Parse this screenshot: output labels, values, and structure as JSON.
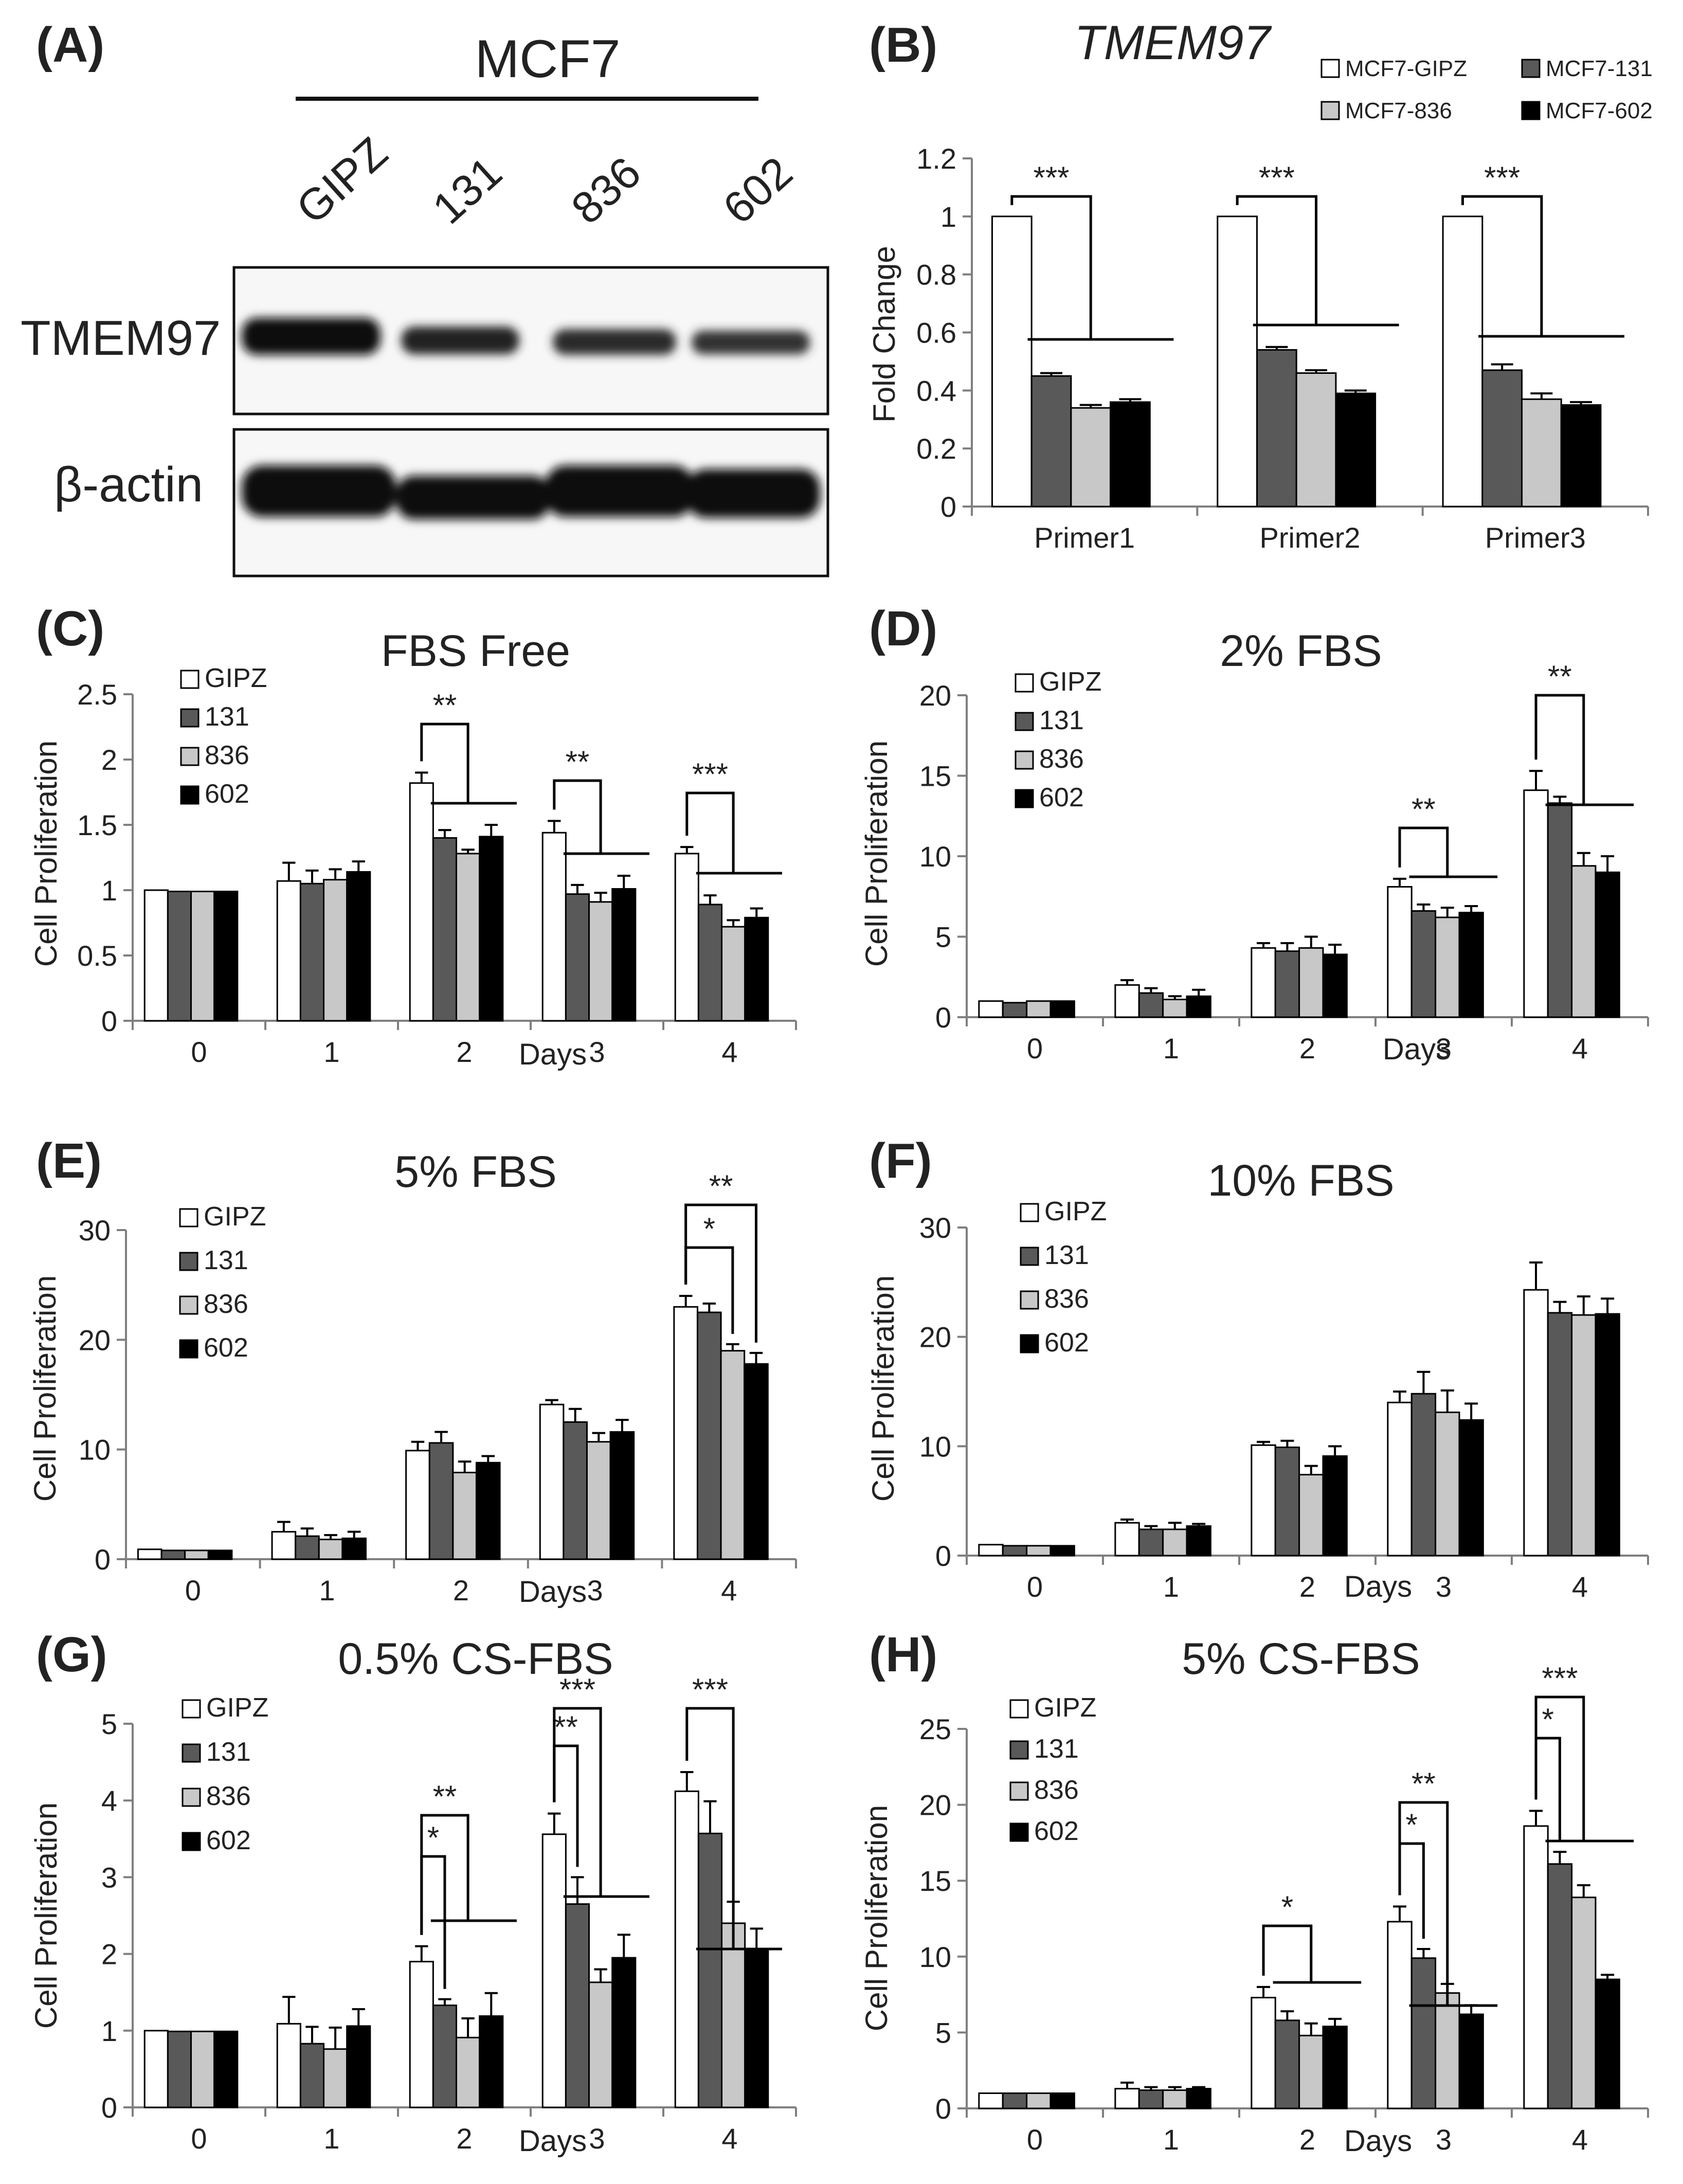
{
  "colors": {
    "gipz": "#ffffff",
    "c131": "#595959",
    "c836": "#c8c8c8",
    "c602": "#000000",
    "axis": "#7f7f7f",
    "ink": "#222222"
  },
  "panel_a": {
    "label": "(A)",
    "cell_line": "MCF7",
    "lanes": [
      "GIPZ",
      "131",
      "836",
      "602"
    ],
    "rows": [
      "TMEM97",
      "β-actin"
    ]
  },
  "chart_data": [
    {
      "id": "B",
      "panel_label": "(B)",
      "type": "bar",
      "title": "TMEM97",
      "categories": [
        "Primer1",
        "Primer2",
        "Primer3"
      ],
      "series": [
        {
          "name": "MCF7-GIPZ",
          "values": [
            1.0,
            1.0,
            1.0
          ],
          "err": [
            0,
            0,
            0
          ]
        },
        {
          "name": "MCF7-131",
          "values": [
            0.45,
            0.54,
            0.47
          ],
          "err": [
            0.01,
            0.01,
            0.02
          ]
        },
        {
          "name": "MCF7-836",
          "values": [
            0.34,
            0.46,
            0.37
          ],
          "err": [
            0.01,
            0.01,
            0.02
          ]
        },
        {
          "name": "MCF7-602",
          "values": [
            0.36,
            0.39,
            0.35
          ],
          "err": [
            0.01,
            0.01,
            0.01
          ]
        }
      ],
      "ylabel": "Fold Change",
      "xlabel": "",
      "ylim": [
        0,
        1.2
      ],
      "yticks": [
        "0",
        "0.2",
        "0.4",
        "0.6",
        "0.8",
        "1",
        "1.2"
      ],
      "annotations": [
        {
          "cat": 0,
          "text": "***"
        },
        {
          "cat": 1,
          "text": "***"
        },
        {
          "cat": 2,
          "text": "***"
        }
      ]
    },
    {
      "id": "C",
      "panel_label": "(C)",
      "type": "bar",
      "title": "FBS Free",
      "categories": [
        "0",
        "1",
        "2",
        "3",
        "4"
      ],
      "series": [
        {
          "name": "GIPZ",
          "values": [
            1.0,
            1.07,
            1.82,
            1.44,
            1.28
          ],
          "err": [
            0,
            0.14,
            0.08,
            0.09,
            0.05
          ]
        },
        {
          "name": "131",
          "values": [
            0.99,
            1.05,
            1.4,
            0.97,
            0.89
          ],
          "err": [
            0,
            0.1,
            0.06,
            0.07,
            0.07
          ]
        },
        {
          "name": "836",
          "values": [
            0.99,
            1.08,
            1.28,
            0.91,
            0.72
          ],
          "err": [
            0,
            0.08,
            0.03,
            0.07,
            0.05
          ]
        },
        {
          "name": "602",
          "values": [
            0.99,
            1.14,
            1.41,
            1.01,
            0.79
          ],
          "err": [
            0,
            0.08,
            0.09,
            0.1,
            0.07
          ]
        }
      ],
      "ylabel": "Cell Proliferation",
      "xlabel": "Days",
      "ylim": [
        0,
        2.5
      ],
      "yticks": [
        "0",
        "0.5",
        "1",
        "1.5",
        "2",
        "2.5"
      ],
      "annotations": [
        {
          "cat": 2,
          "text": "**"
        },
        {
          "cat": 3,
          "text": "**"
        },
        {
          "cat": 4,
          "text": "***"
        }
      ]
    },
    {
      "id": "D",
      "panel_label": "(D)",
      "type": "bar",
      "title": "2% FBS",
      "categories": [
        "0",
        "1",
        "2",
        "3",
        "4"
      ],
      "series": [
        {
          "name": "GIPZ",
          "values": [
            1.0,
            2.0,
            4.3,
            8.1,
            14.1
          ],
          "err": [
            0,
            0.3,
            0.3,
            0.5,
            1.2
          ]
        },
        {
          "name": "131",
          "values": [
            0.9,
            1.5,
            4.1,
            6.6,
            13.3
          ],
          "err": [
            0,
            0.3,
            0.5,
            0.4,
            0.4
          ]
        },
        {
          "name": "836",
          "values": [
            1.0,
            1.1,
            4.3,
            6.2,
            9.4
          ],
          "err": [
            0,
            0.2,
            0.7,
            0.6,
            0.8
          ]
        },
        {
          "name": "602",
          "values": [
            1.0,
            1.3,
            3.9,
            6.5,
            9.0
          ],
          "err": [
            0,
            0.4,
            0.6,
            0.4,
            1.0
          ]
        }
      ],
      "ylabel": "Cell Proliferation",
      "xlabel": "Days",
      "ylim": [
        0,
        20
      ],
      "yticks": [
        "0",
        "5",
        "10",
        "15",
        "20"
      ],
      "annotations": [
        {
          "cat": 3,
          "text": "**"
        },
        {
          "cat": 4,
          "text": "**"
        }
      ]
    },
    {
      "id": "E",
      "panel_label": "(E)",
      "type": "bar",
      "title": "5% FBS",
      "categories": [
        "0",
        "1",
        "2",
        "3",
        "4"
      ],
      "series": [
        {
          "name": "GIPZ",
          "values": [
            0.9,
            2.5,
            9.9,
            14.1,
            23.0
          ],
          "err": [
            0,
            0.9,
            0.8,
            0.4,
            1.0
          ]
        },
        {
          "name": "131",
          "values": [
            0.8,
            2.1,
            10.6,
            12.5,
            22.5
          ],
          "err": [
            0,
            0.7,
            1.0,
            1.2,
            0.8
          ]
        },
        {
          "name": "836",
          "values": [
            0.8,
            1.8,
            7.9,
            10.7,
            19.0
          ],
          "err": [
            0,
            0.4,
            1.0,
            0.8,
            0.6
          ]
        },
        {
          "name": "602",
          "values": [
            0.8,
            1.9,
            8.8,
            11.6,
            17.8
          ],
          "err": [
            0,
            0.6,
            0.6,
            1.1,
            1.0
          ]
        }
      ],
      "ylabel": "Cell Proliferation",
      "xlabel": "Days",
      "ylim": [
        0,
        30
      ],
      "yticks": [
        "0",
        "10",
        "20",
        "30"
      ],
      "annotations": [
        {
          "cat": 4,
          "text": "*"
        },
        {
          "cat": 4,
          "text": "**"
        }
      ]
    },
    {
      "id": "F",
      "panel_label": "(F)",
      "type": "bar",
      "title": "10% FBS",
      "categories": [
        "0",
        "1",
        "2",
        "3",
        "4"
      ],
      "series": [
        {
          "name": "GIPZ",
          "values": [
            1.0,
            3.0,
            10.1,
            14.0,
            24.3
          ],
          "err": [
            0,
            0.3,
            0.3,
            1.0,
            2.5
          ]
        },
        {
          "name": "131",
          "values": [
            0.9,
            2.4,
            9.9,
            14.8,
            22.2
          ],
          "err": [
            0,
            0.3,
            0.6,
            2.0,
            1.0
          ]
        },
        {
          "name": "836",
          "values": [
            0.9,
            2.4,
            7.4,
            13.1,
            22.0
          ],
          "err": [
            0,
            0.6,
            0.8,
            2.0,
            1.7
          ]
        },
        {
          "name": "602",
          "values": [
            0.9,
            2.7,
            9.1,
            12.4,
            22.1
          ],
          "err": [
            0,
            0.2,
            0.9,
            1.5,
            1.4
          ]
        }
      ],
      "ylabel": "Cell Proliferation",
      "xlabel": "Days",
      "ylim": [
        0,
        30
      ],
      "yticks": [
        "0",
        "10",
        "20",
        "30"
      ],
      "annotations": []
    },
    {
      "id": "G",
      "panel_label": "(G)",
      "type": "bar",
      "title": "0.5% CS-FBS",
      "categories": [
        "0",
        "1",
        "2",
        "3",
        "4"
      ],
      "series": [
        {
          "name": "GIPZ",
          "values": [
            1.0,
            1.09,
            1.9,
            3.56,
            4.12
          ],
          "err": [
            0,
            0.35,
            0.2,
            0.27,
            0.25
          ]
        },
        {
          "name": "131",
          "values": [
            0.99,
            0.83,
            1.33,
            2.65,
            3.57
          ],
          "err": [
            0,
            0.22,
            0.08,
            0.35,
            0.42
          ]
        },
        {
          "name": "836",
          "values": [
            0.99,
            0.76,
            0.91,
            1.63,
            2.4
          ],
          "err": [
            0,
            0.28,
            0.25,
            0.17,
            0.28
          ]
        },
        {
          "name": "602",
          "values": [
            0.99,
            1.06,
            1.19,
            1.95,
            2.06
          ],
          "err": [
            0,
            0.22,
            0.3,
            0.3,
            0.27
          ]
        }
      ],
      "ylabel": "Cell Proliferation",
      "xlabel": "Days",
      "ylim": [
        0,
        5
      ],
      "yticks": [
        "0",
        "1",
        "2",
        "3",
        "4",
        "5"
      ],
      "annotations": [
        {
          "cat": 2,
          "text": "*"
        },
        {
          "cat": 2,
          "text": "**"
        },
        {
          "cat": 3,
          "text": "**"
        },
        {
          "cat": 3,
          "text": "***"
        },
        {
          "cat": 4,
          "text": "***"
        }
      ]
    },
    {
      "id": "H",
      "panel_label": "(H)",
      "type": "bar",
      "title": "5% CS-FBS",
      "categories": [
        "0",
        "1",
        "2",
        "3",
        "4"
      ],
      "series": [
        {
          "name": "GIPZ",
          "values": [
            1.0,
            1.3,
            7.3,
            12.3,
            18.6
          ],
          "err": [
            0,
            0.4,
            0.7,
            1.0,
            1.0
          ]
        },
        {
          "name": "131",
          "values": [
            1.0,
            1.2,
            5.8,
            9.9,
            16.1
          ],
          "err": [
            0,
            0.2,
            0.6,
            0.6,
            0.8
          ]
        },
        {
          "name": "836",
          "values": [
            1.0,
            1.2,
            4.8,
            7.6,
            13.9
          ],
          "err": [
            0,
            0.2,
            0.8,
            0.6,
            0.8
          ]
        },
        {
          "name": "602",
          "values": [
            1.0,
            1.3,
            5.4,
            6.2,
            8.5
          ],
          "err": [
            0,
            0.1,
            0.5,
            0.6,
            0.3
          ]
        }
      ],
      "ylabel": "Cell Proliferation",
      "xlabel": "Days",
      "ylim": [
        0,
        25
      ],
      "yticks": [
        "0",
        "5",
        "10",
        "15",
        "20",
        "25"
      ],
      "annotations": [
        {
          "cat": 2,
          "text": "*"
        },
        {
          "cat": 3,
          "text": "*"
        },
        {
          "cat": 3,
          "text": "**"
        },
        {
          "cat": 4,
          "text": "*"
        },
        {
          "cat": 4,
          "text": "***"
        }
      ]
    }
  ]
}
